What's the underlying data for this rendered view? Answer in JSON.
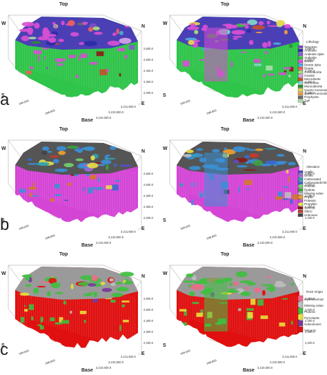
{
  "labels": {
    "top": "Top",
    "base": "Base",
    "w": "W",
    "n": "N",
    "s": "S",
    "e": "E"
  },
  "zticks": [
    "2,600.0",
    "2,500.0",
    "2,400.0",
    "2,300.0",
    "2,200.0"
  ],
  "xticks": [
    "3,211,600.0",
    "3,210,800.0",
    "3,210,000.0"
  ],
  "yticks": [
    "399,600",
    "398,800"
  ],
  "panels": [
    {
      "letter": "a",
      "legend_title": "Lithology",
      "colors": {
        "top": "#4b3fb5",
        "wall": "#2fc44a",
        "alt": "#d84fd4",
        "accent": "#8b1a12"
      },
      "legend": [
        {
          "label": "Structure",
          "color": "#7b4fc9"
        },
        {
          "label": "Andesite",
          "color": "#2a2aa8"
        },
        {
          "label": "Andesite dyke",
          "color": "#8a56d6"
        },
        {
          "label": "Andesite",
          "color": "#3fbf3f"
        },
        {
          "label": "Basalt",
          "color": "#e34be3"
        },
        {
          "label": "Diorite dyke",
          "color": "#4fa8e0"
        },
        {
          "label": "Diorite",
          "color": "#f25f5f"
        },
        {
          "label": "Granodiorite",
          "color": "#a7e07a"
        },
        {
          "label": "Granite",
          "color": "#d6a4e8"
        },
        {
          "label": "Microdiorite",
          "color": "#c84f2a"
        },
        {
          "label": "Monzonite",
          "color": "#7fd9c8"
        },
        {
          "label": "Monzodiorite",
          "color": "#2f8f2f"
        },
        {
          "label": "Quartz monzonite",
          "color": "#e6d84a"
        },
        {
          "label": "Quartz monzodiorite",
          "color": "#f0a040"
        },
        {
          "label": "Porphyrite",
          "color": "#6a6a6a"
        },
        {
          "label": "Tuff",
          "color": "#a8e0a8"
        }
      ]
    },
    {
      "letter": "b",
      "legend_title": "Alteration",
      "colors": {
        "top": "#555555",
        "wall": "#d445d6",
        "alt": "#3b8fd6",
        "accent": "#d07a2a"
      },
      "legend": [
        {
          "label": "Argillic",
          "color": "#5a4fc0"
        },
        {
          "label": "Biotite",
          "color": "#a06ad8"
        },
        {
          "label": "Carbonated",
          "color": "#2f9fb0"
        },
        {
          "label": "Carbonated/chlorite",
          "color": "#3a6ad0"
        },
        {
          "label": "Chlorite",
          "color": "#6fcf6f"
        },
        {
          "label": "Epidote",
          "color": "#3fa03f"
        },
        {
          "label": "Missing value",
          "color": "#bdbdbd"
        },
        {
          "label": "Phyllic",
          "color": "#f0a030"
        },
        {
          "label": "Potassic",
          "color": "#d24fd2"
        },
        {
          "label": "Propylitic",
          "color": "#e6e04a"
        },
        {
          "label": "Sericitic",
          "color": "#8b1a12"
        },
        {
          "label": "Silicic",
          "color": "#c83a2a"
        },
        {
          "label": "Unknown",
          "color": "#444444"
        }
      ]
    },
    {
      "letter": "c",
      "legend_title": "Rock Origin",
      "colors": {
        "top": "#9a9a9a",
        "wall": "#e01010",
        "alt": "#3fbf3f",
        "accent": "#e8e03a"
      },
      "legend": [
        {
          "label": "Hydrothermal",
          "color": "#f06a8a"
        },
        {
          "label": "Missing value",
          "color": "#bdbdbd"
        },
        {
          "label": "Plutonic",
          "color": "#3fbf3f"
        },
        {
          "label": "Pyroclastic",
          "color": "#e8e03a"
        },
        {
          "label": "Subvolcanic",
          "color": "#7a3a9a"
        },
        {
          "label": "Volcanic",
          "color": "#e01010"
        }
      ]
    }
  ]
}
